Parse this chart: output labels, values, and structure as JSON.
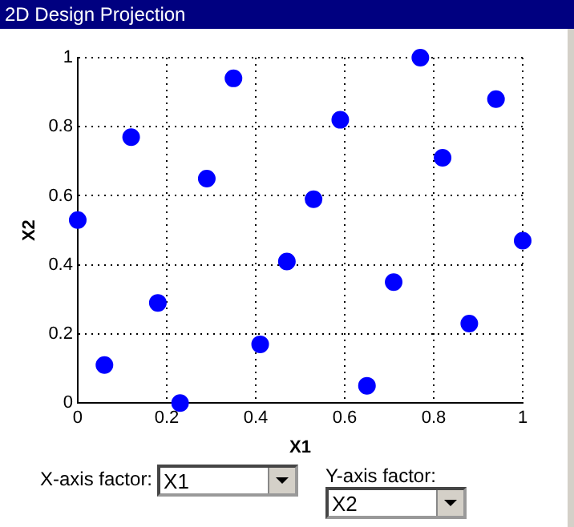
{
  "chart_data": {
    "type": "scatter",
    "title": "2D Design Projection",
    "xlabel": "X1",
    "ylabel": "X2",
    "x": [
      0,
      0.06,
      0.12,
      0.18,
      0.23,
      0.29,
      0.35,
      0.41,
      0.47,
      0.53,
      0.59,
      0.65,
      0.71,
      0.77,
      0.82,
      0.88,
      0.94,
      1
    ],
    "series": [
      {
        "color": "#0000ff",
        "values": [
          0.53,
          0.11,
          0.77,
          0.29,
          0.0,
          0.65,
          0.94,
          0.17,
          0.41,
          0.59,
          0.82,
          0.05,
          0.35,
          1.0,
          0.71,
          0.23,
          0.88,
          0.47
        ]
      }
    ],
    "xlim": [
      0,
      1
    ],
    "ylim": [
      0,
      1
    ],
    "xticks": [
      0,
      0.2,
      0.4,
      0.6,
      0.8,
      1
    ],
    "yticks": [
      0,
      0.2,
      0.4,
      0.6,
      0.8,
      1
    ],
    "grid": true,
    "legend": false,
    "marker": "circle",
    "annotations": [
      "X-axis factor:",
      "Y-axis factor:"
    ]
  }
}
